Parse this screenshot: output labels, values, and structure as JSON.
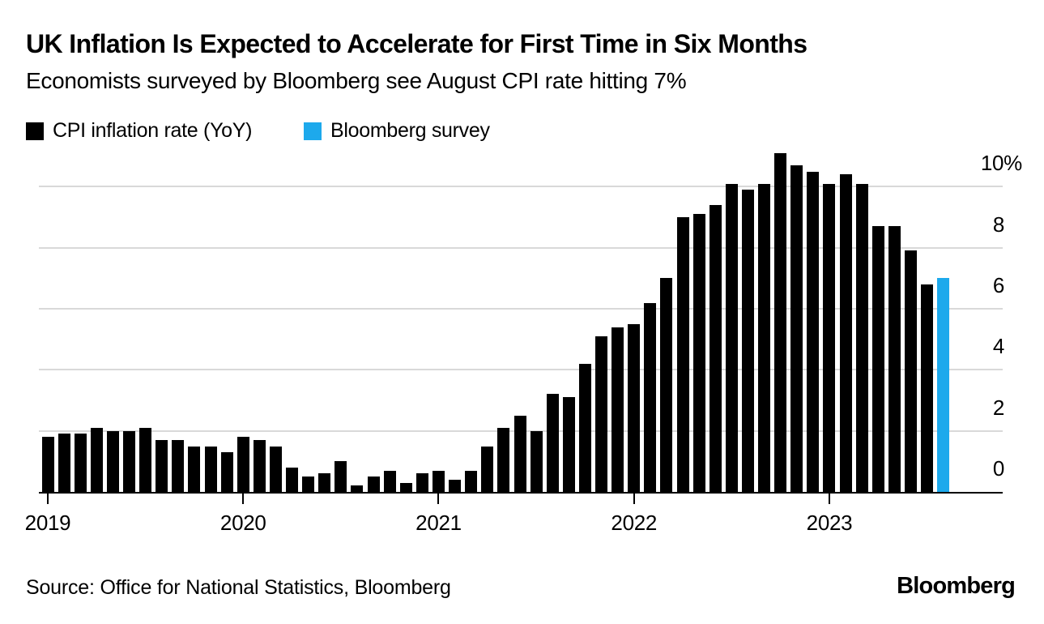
{
  "header": {
    "title": "UK Inflation Is Expected to Accelerate for First Time in Six Months",
    "subtitle": "Economists surveyed by Bloomberg see August CPI rate hitting 7%"
  },
  "legend": {
    "items": [
      {
        "label": "CPI inflation rate (YoY)",
        "color": "#000000"
      },
      {
        "label": "Bloomberg survey",
        "color": "#1DA9EC"
      }
    ]
  },
  "chart_data": {
    "type": "bar",
    "title": "UK Inflation Is Expected to Accelerate for First Time in Six Months",
    "subtitle": "Economists surveyed by Bloomberg see August CPI rate hitting 7%",
    "unit": "percent YoY",
    "grid": "horizontal",
    "legend_position": "top-left",
    "ylim": [
      0,
      11.6
    ],
    "yticks": [
      0,
      2,
      4,
      6,
      8,
      10
    ],
    "ytick_labels": [
      "0",
      "2",
      "4",
      "6",
      "8",
      "10%"
    ],
    "xtick_years": [
      "2019",
      "2020",
      "2021",
      "2022",
      "2023"
    ],
    "series": [
      {
        "name": "CPI inflation rate (YoY)",
        "color": "#000000",
        "start_month": "2019-01",
        "values": [
          1.8,
          1.9,
          1.9,
          2.1,
          2.0,
          2.0,
          2.1,
          1.7,
          1.7,
          1.5,
          1.5,
          1.3,
          1.8,
          1.7,
          1.5,
          0.8,
          0.5,
          0.6,
          1.0,
          0.2,
          0.5,
          0.7,
          0.3,
          0.6,
          0.7,
          0.4,
          0.7,
          1.5,
          2.1,
          2.5,
          2.0,
          3.2,
          3.1,
          4.2,
          5.1,
          5.4,
          5.5,
          6.2,
          7.0,
          9.0,
          9.1,
          9.4,
          10.1,
          9.9,
          10.1,
          11.1,
          10.7,
          10.5,
          10.1,
          10.4,
          10.1,
          8.7,
          8.7,
          7.9,
          6.8
        ]
      },
      {
        "name": "Bloomberg survey",
        "color": "#1DA9EC",
        "start_month": "2023-08",
        "values": [
          7.0
        ]
      }
    ]
  },
  "footer": {
    "source": "Source: Office for National Statistics, Bloomberg",
    "brand": "Bloomberg"
  }
}
